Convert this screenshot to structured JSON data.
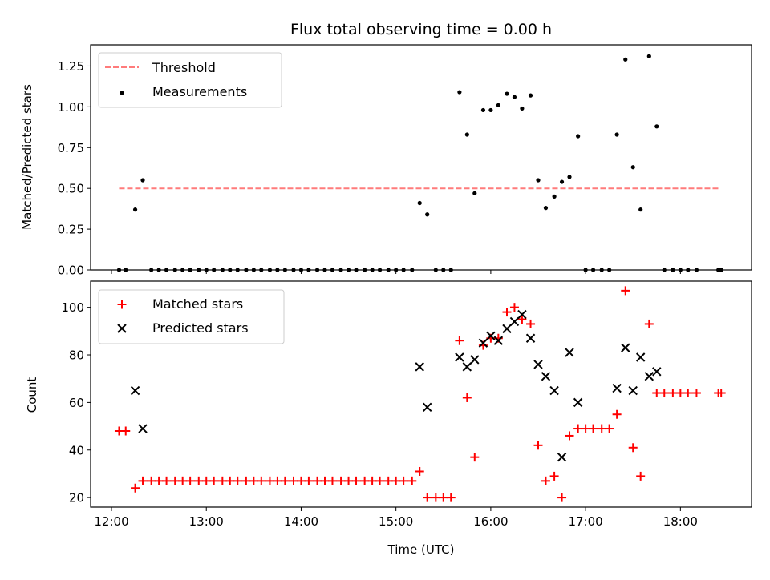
{
  "chart_data": [
    {
      "type": "scatter",
      "title": "Flux total observing time = 0.00 h",
      "ylabel": "Matched/Predicted stars",
      "xlabel": "",
      "xlim": [
        11.78,
        18.75
      ],
      "ylim": [
        0,
        1.38
      ],
      "yticks": [
        "0.00",
        "0.25",
        "0.50",
        "0.75",
        "1.00",
        "1.25"
      ],
      "ytick_values": [
        0,
        0.25,
        0.5,
        0.75,
        1.0,
        1.25
      ],
      "x_tick_values": [
        12,
        13,
        14,
        15,
        16,
        17,
        18
      ],
      "legend_position": "upper left",
      "threshold": {
        "name": "Threshold",
        "y": 0.5,
        "x_range": [
          12.08,
          18.42
        ],
        "color": "#ff7b7b",
        "style": "dashed"
      },
      "series": [
        {
          "name": "Measurements",
          "color": "#000000",
          "marker": "dot",
          "points": [
            [
              12.08,
              0
            ],
            [
              12.15,
              0
            ],
            [
              12.25,
              0.37
            ],
            [
              12.33,
              0.55
            ],
            [
              12.42,
              0
            ],
            [
              12.5,
              0
            ],
            [
              12.58,
              0
            ],
            [
              12.67,
              0
            ],
            [
              12.75,
              0
            ],
            [
              12.83,
              0
            ],
            [
              12.92,
              0
            ],
            [
              13.0,
              0
            ],
            [
              13.08,
              0
            ],
            [
              13.17,
              0
            ],
            [
              13.25,
              0
            ],
            [
              13.33,
              0
            ],
            [
              13.42,
              0
            ],
            [
              13.5,
              0
            ],
            [
              13.58,
              0
            ],
            [
              13.67,
              0
            ],
            [
              13.75,
              0
            ],
            [
              13.83,
              0
            ],
            [
              13.92,
              0
            ],
            [
              14.0,
              0
            ],
            [
              14.08,
              0
            ],
            [
              14.17,
              0
            ],
            [
              14.25,
              0
            ],
            [
              14.33,
              0
            ],
            [
              14.42,
              0
            ],
            [
              14.5,
              0
            ],
            [
              14.58,
              0
            ],
            [
              14.67,
              0
            ],
            [
              14.75,
              0
            ],
            [
              14.83,
              0
            ],
            [
              14.92,
              0
            ],
            [
              15.0,
              0
            ],
            [
              15.08,
              0
            ],
            [
              15.17,
              0
            ],
            [
              15.25,
              0.41
            ],
            [
              15.33,
              0.34
            ],
            [
              15.42,
              0
            ],
            [
              15.5,
              0
            ],
            [
              15.58,
              0
            ],
            [
              15.67,
              1.09
            ],
            [
              15.75,
              0.83
            ],
            [
              15.83,
              0.47
            ],
            [
              15.92,
              0.98
            ],
            [
              16.0,
              0.98
            ],
            [
              16.08,
              1.01
            ],
            [
              16.17,
              1.08
            ],
            [
              16.25,
              1.06
            ],
            [
              16.33,
              0.99
            ],
            [
              16.42,
              1.07
            ],
            [
              16.5,
              0.55
            ],
            [
              16.58,
              0.38
            ],
            [
              16.67,
              0.45
            ],
            [
              16.75,
              0.54
            ],
            [
              16.83,
              0.57
            ],
            [
              16.92,
              0.82
            ],
            [
              17.0,
              0
            ],
            [
              17.08,
              0
            ],
            [
              17.17,
              0
            ],
            [
              17.25,
              0
            ],
            [
              17.33,
              0.83
            ],
            [
              17.42,
              1.29
            ],
            [
              17.5,
              0.63
            ],
            [
              17.58,
              0.37
            ],
            [
              17.67,
              1.31
            ],
            [
              17.75,
              0.88
            ],
            [
              17.83,
              0
            ],
            [
              17.92,
              0
            ],
            [
              18.0,
              0
            ],
            [
              18.08,
              0
            ],
            [
              18.17,
              0
            ],
            [
              18.4,
              0
            ],
            [
              18.43,
              0
            ]
          ]
        }
      ]
    },
    {
      "type": "scatter",
      "title": "",
      "xlabel": "Time (UTC)",
      "ylabel": "Count",
      "xlim": [
        11.78,
        18.75
      ],
      "ylim": [
        16,
        111
      ],
      "yticks": [
        "20",
        "40",
        "60",
        "80",
        "100"
      ],
      "ytick_values": [
        20,
        40,
        60,
        80,
        100
      ],
      "xticks": [
        "12:00",
        "13:00",
        "14:00",
        "15:00",
        "16:00",
        "17:00",
        "18:00"
      ],
      "x_tick_values": [
        12,
        13,
        14,
        15,
        16,
        17,
        18
      ],
      "legend_position": "upper left",
      "series": [
        {
          "name": "Matched stars",
          "color": "#ff0000",
          "marker": "plus",
          "points": [
            [
              12.08,
              48
            ],
            [
              12.15,
              48
            ],
            [
              12.25,
              24
            ],
            [
              12.33,
              27
            ],
            [
              12.42,
              27
            ],
            [
              12.5,
              27
            ],
            [
              12.58,
              27
            ],
            [
              12.67,
              27
            ],
            [
              12.75,
              27
            ],
            [
              12.83,
              27
            ],
            [
              12.92,
              27
            ],
            [
              13.0,
              27
            ],
            [
              13.08,
              27
            ],
            [
              13.17,
              27
            ],
            [
              13.25,
              27
            ],
            [
              13.33,
              27
            ],
            [
              13.42,
              27
            ],
            [
              13.5,
              27
            ],
            [
              13.58,
              27
            ],
            [
              13.67,
              27
            ],
            [
              13.75,
              27
            ],
            [
              13.83,
              27
            ],
            [
              13.92,
              27
            ],
            [
              14.0,
              27
            ],
            [
              14.08,
              27
            ],
            [
              14.17,
              27
            ],
            [
              14.25,
              27
            ],
            [
              14.33,
              27
            ],
            [
              14.42,
              27
            ],
            [
              14.5,
              27
            ],
            [
              14.58,
              27
            ],
            [
              14.67,
              27
            ],
            [
              14.75,
              27
            ],
            [
              14.83,
              27
            ],
            [
              14.92,
              27
            ],
            [
              15.0,
              27
            ],
            [
              15.08,
              27
            ],
            [
              15.17,
              27
            ],
            [
              15.25,
              31
            ],
            [
              15.33,
              20
            ],
            [
              15.42,
              20
            ],
            [
              15.5,
              20
            ],
            [
              15.58,
              20
            ],
            [
              15.67,
              86
            ],
            [
              15.75,
              62
            ],
            [
              15.83,
              37
            ],
            [
              15.92,
              84
            ],
            [
              16.0,
              87
            ],
            [
              16.08,
              87
            ],
            [
              16.17,
              98
            ],
            [
              16.25,
              100
            ],
            [
              16.33,
              95
            ],
            [
              16.42,
              93
            ],
            [
              16.5,
              42
            ],
            [
              16.58,
              27
            ],
            [
              16.67,
              29
            ],
            [
              16.75,
              20
            ],
            [
              16.83,
              46
            ],
            [
              16.92,
              49
            ],
            [
              17.0,
              49
            ],
            [
              17.08,
              49
            ],
            [
              17.17,
              49
            ],
            [
              17.25,
              49
            ],
            [
              17.33,
              55
            ],
            [
              17.42,
              107
            ],
            [
              17.5,
              41
            ],
            [
              17.58,
              29
            ],
            [
              17.67,
              93
            ],
            [
              17.75,
              64
            ],
            [
              17.83,
              64
            ],
            [
              17.92,
              64
            ],
            [
              18.0,
              64
            ],
            [
              18.08,
              64
            ],
            [
              18.17,
              64
            ],
            [
              18.4,
              64
            ],
            [
              18.43,
              64
            ]
          ]
        },
        {
          "name": "Predicted stars",
          "color": "#000000",
          "marker": "x",
          "points": [
            [
              12.25,
              65
            ],
            [
              12.33,
              49
            ],
            [
              15.25,
              75
            ],
            [
              15.33,
              58
            ],
            [
              15.67,
              79
            ],
            [
              15.75,
              75
            ],
            [
              15.83,
              78
            ],
            [
              15.92,
              85
            ],
            [
              16.0,
              88
            ],
            [
              16.08,
              86
            ],
            [
              16.17,
              91
            ],
            [
              16.25,
              94
            ],
            [
              16.33,
              97
            ],
            [
              16.42,
              87
            ],
            [
              16.5,
              76
            ],
            [
              16.58,
              71
            ],
            [
              16.67,
              65
            ],
            [
              16.75,
              37
            ],
            [
              16.83,
              81
            ],
            [
              16.92,
              60
            ],
            [
              17.33,
              66
            ],
            [
              17.42,
              83
            ],
            [
              17.5,
              65
            ],
            [
              17.58,
              79
            ],
            [
              17.67,
              71
            ],
            [
              17.75,
              73
            ]
          ]
        }
      ]
    }
  ]
}
